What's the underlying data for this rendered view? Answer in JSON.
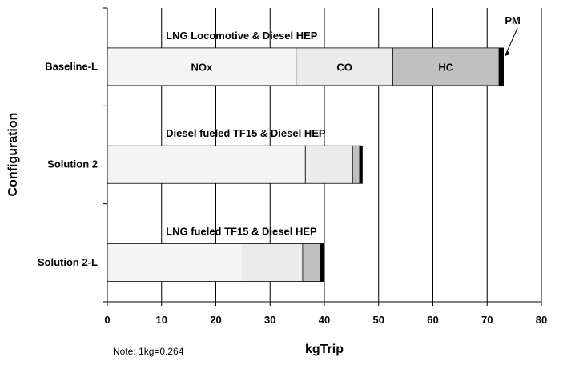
{
  "chart_data": {
    "type": "bar",
    "orientation": "horizontal",
    "stacked": true,
    "ylabel": "Configuration",
    "xlabel": "kgTrip",
    "xlim": [
      0,
      80
    ],
    "x_ticks": [
      "0",
      "10",
      "20",
      "30",
      "40",
      "50",
      "60",
      "70",
      "80"
    ],
    "grid": "vertical gridlines",
    "categories": [
      "Baseline-L",
      "Solution 2",
      "Solution 2-L"
    ],
    "annotations": [
      "LNG Locomotive & Diesel HEP",
      "Diesel fueled TF15 & Diesel HEP",
      "LNG fueled TF15 & Diesel HEP"
    ],
    "series": [
      {
        "name": "NOx",
        "color": "#f4f4f4",
        "values": [
          34.8,
          36.5,
          25.0
        ]
      },
      {
        "name": "CO",
        "color": "#ebebeb",
        "values": [
          17.8,
          8.7,
          11.0
        ]
      },
      {
        "name": "HC",
        "color": "#c0c0c0",
        "values": [
          19.6,
          1.3,
          3.3
        ]
      },
      {
        "name": "PM",
        "color": "#000000",
        "values": [
          0.8,
          0.5,
          0.5
        ]
      }
    ],
    "segment_labels": [
      "NOx",
      "CO",
      "HC",
      "PM"
    ]
  },
  "note": "Note: 1kg=0.264"
}
